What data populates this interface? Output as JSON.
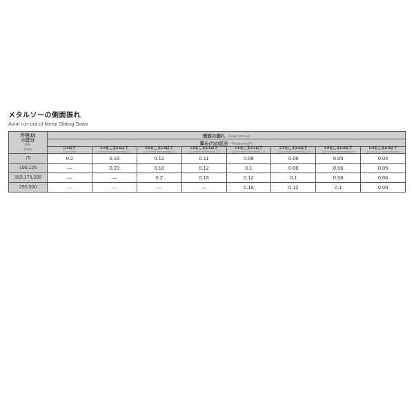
{
  "title": {
    "jp": "メタルソーの側面振れ",
    "en": "Axial run-out of Metal Slitting Saws"
  },
  "rowhead": {
    "l1": "外径(D)",
    "l2": "の区分",
    "l3": "Dia.",
    "l4": "(mm)"
  },
  "super1": {
    "jp": "側面の振れ",
    "en": "Axial run-out"
  },
  "super2": {
    "jp": "厚み(T)の区分",
    "en": "Thickness(T)"
  },
  "cols": [
    {
      "jp": "0.4以下",
      "en": "0.4 or less"
    },
    {
      "jp": "0.4をこえ0.6以下",
      "en": "0.6 or less exceeding 0.4"
    },
    {
      "jp": "0.6をこえ1.0以下",
      "en": "1.0 or less exceeding 0.6"
    },
    {
      "jp": "1.0をこえ1.6以下",
      "en": "1.6 or less exceeding 1.0"
    },
    {
      "jp": "1.6をこえ2.5以下",
      "en": "2.5 or less exceeding 1.6"
    },
    {
      "jp": "2.5をこえ4.0以下",
      "en": "4.0 or less exceeding 2.5"
    },
    {
      "jp": "4.0をこえ6.0以下",
      "en": "6.0 or less exceeding 4.0"
    },
    {
      "jp": "6.0をこえ8.0以下",
      "en": "8.0 or less exceeding 6.0"
    }
  ],
  "rows": [
    {
      "dia": "75",
      "v": [
        "0.2",
        "0.16",
        "0.12",
        "0.11",
        "0.08",
        "0.06",
        "0.05",
        "0.04"
      ]
    },
    {
      "dia": "100,125",
      "v": [
        "—",
        "0.20",
        "0.16",
        "0.12",
        "0.1",
        "0.08",
        "0.06",
        "0.05"
      ]
    },
    {
      "dia": "150,175,200",
      "v": [
        "—",
        "—",
        "0.2",
        "0.16",
        "0.12",
        "0.1",
        "0.08",
        "0.06"
      ]
    },
    {
      "dia": "250,300",
      "v": [
        "—",
        "—",
        "—",
        "—",
        "0.16",
        "0.12",
        "0.1",
        "0.08"
      ]
    }
  ]
}
